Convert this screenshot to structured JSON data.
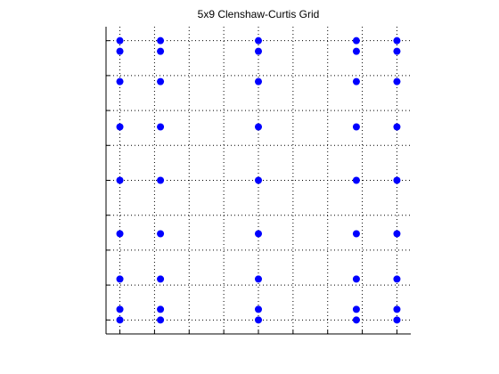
{
  "chart_data": {
    "type": "scatter",
    "title": "5x9 Clenshaw-Curtis Grid",
    "x": [
      -1,
      -1,
      -1,
      -1,
      -1,
      -1,
      -1,
      -1,
      -1,
      -0.7071,
      -0.7071,
      -0.7071,
      -0.7071,
      -0.7071,
      -0.7071,
      -0.7071,
      -0.7071,
      -0.7071,
      0,
      0,
      0,
      0,
      0,
      0,
      0,
      0,
      0,
      0.7071,
      0.7071,
      0.7071,
      0.7071,
      0.7071,
      0.7071,
      0.7071,
      0.7071,
      0.7071,
      1,
      1,
      1,
      1,
      1,
      1,
      1,
      1,
      1
    ],
    "series": [
      {
        "color": "#0000ff",
        "values": [
          1,
          0.9239,
          0.7071,
          0.3827,
          0,
          -0.3827,
          -0.7071,
          -0.9239,
          -1,
          1,
          0.9239,
          0.7071,
          0.3827,
          0,
          -0.3827,
          -0.7071,
          -0.9239,
          -1,
          1,
          0.9239,
          0.7071,
          0.3827,
          0,
          -0.3827,
          -0.7071,
          -0.9239,
          -1,
          1,
          0.9239,
          0.7071,
          0.3827,
          0,
          -0.3827,
          -0.7071,
          -0.9239,
          -1,
          1,
          0.9239,
          0.7071,
          0.3827,
          0,
          -0.3827,
          -0.7071,
          -0.9239,
          -1
        ]
      }
    ],
    "xlim": [
      -1.1,
      1.1
    ],
    "ylim": [
      -1.1,
      1.1
    ],
    "xticks": [
      -1,
      -0.75,
      -0.5,
      -0.25,
      0,
      0.25,
      0.5,
      0.75,
      1
    ],
    "yticks": [
      -1,
      -0.75,
      -0.5,
      -0.25,
      0,
      0.25,
      0.5,
      0.75,
      1
    ],
    "grid": true
  }
}
